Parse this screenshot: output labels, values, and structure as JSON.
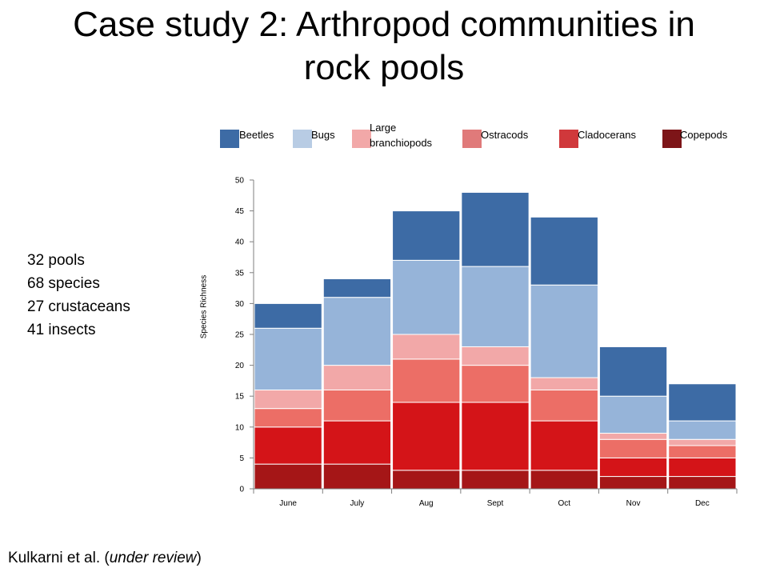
{
  "slide": {
    "title_line1": "Case study 2: Arthropod communities in",
    "title_line2": "rock pools",
    "stats": [
      "32 pools",
      "68 species",
      "27 crustaceans",
      "41 insects"
    ],
    "citation_prefix": "Kulkarni et al. (",
    "citation_italic": "under review",
    "citation_suffix": ")"
  },
  "chart_data": {
    "type": "bar",
    "stacked": true,
    "categories": [
      "June",
      "July",
      "Aug",
      "Sept",
      "Oct",
      "Nov",
      "Dec"
    ],
    "ylabel": "Species Richness",
    "xlabel": "",
    "ylim": [
      0,
      50
    ],
    "yticks": [
      0,
      5,
      10,
      15,
      20,
      25,
      30,
      35,
      40,
      45,
      50
    ],
    "grid": false,
    "legend_position": "top",
    "series": [
      {
        "name": "Copepods",
        "color": "#a51617",
        "values": [
          4,
          4,
          3,
          3,
          3,
          2,
          2
        ]
      },
      {
        "name": "Cladocerans",
        "color": "#d41418",
        "values": [
          6,
          7,
          11,
          11,
          8,
          3,
          3
        ]
      },
      {
        "name": "Ostracods",
        "color": "#ec6e66",
        "values": [
          3,
          5,
          7,
          6,
          5,
          3,
          2
        ]
      },
      {
        "name": "Large branchiopods",
        "color": "#f2a8a8",
        "values": [
          3,
          4,
          4,
          3,
          2,
          1,
          1
        ]
      },
      {
        "name": "Bugs",
        "color": "#96b4d9",
        "values": [
          10,
          11,
          12,
          13,
          15,
          6,
          3
        ]
      },
      {
        "name": "Beetles",
        "color": "#3d6ba5",
        "values": [
          4,
          3,
          8,
          12,
          11,
          8,
          6
        ]
      }
    ],
    "legend": [
      {
        "name": "Beetles",
        "color": "#3d6ba5"
      },
      {
        "name": "Bugs",
        "color": "#b8cce4"
      },
      {
        "name_line1": "Large",
        "name_line2": "branchiopods",
        "color": "#f2a8a8"
      },
      {
        "name": "Ostracods",
        "color": "#e07a7a"
      },
      {
        "name": "Cladocerans",
        "color": "#d0383b"
      },
      {
        "name": "Copepods",
        "color": "#7d1518"
      }
    ]
  }
}
